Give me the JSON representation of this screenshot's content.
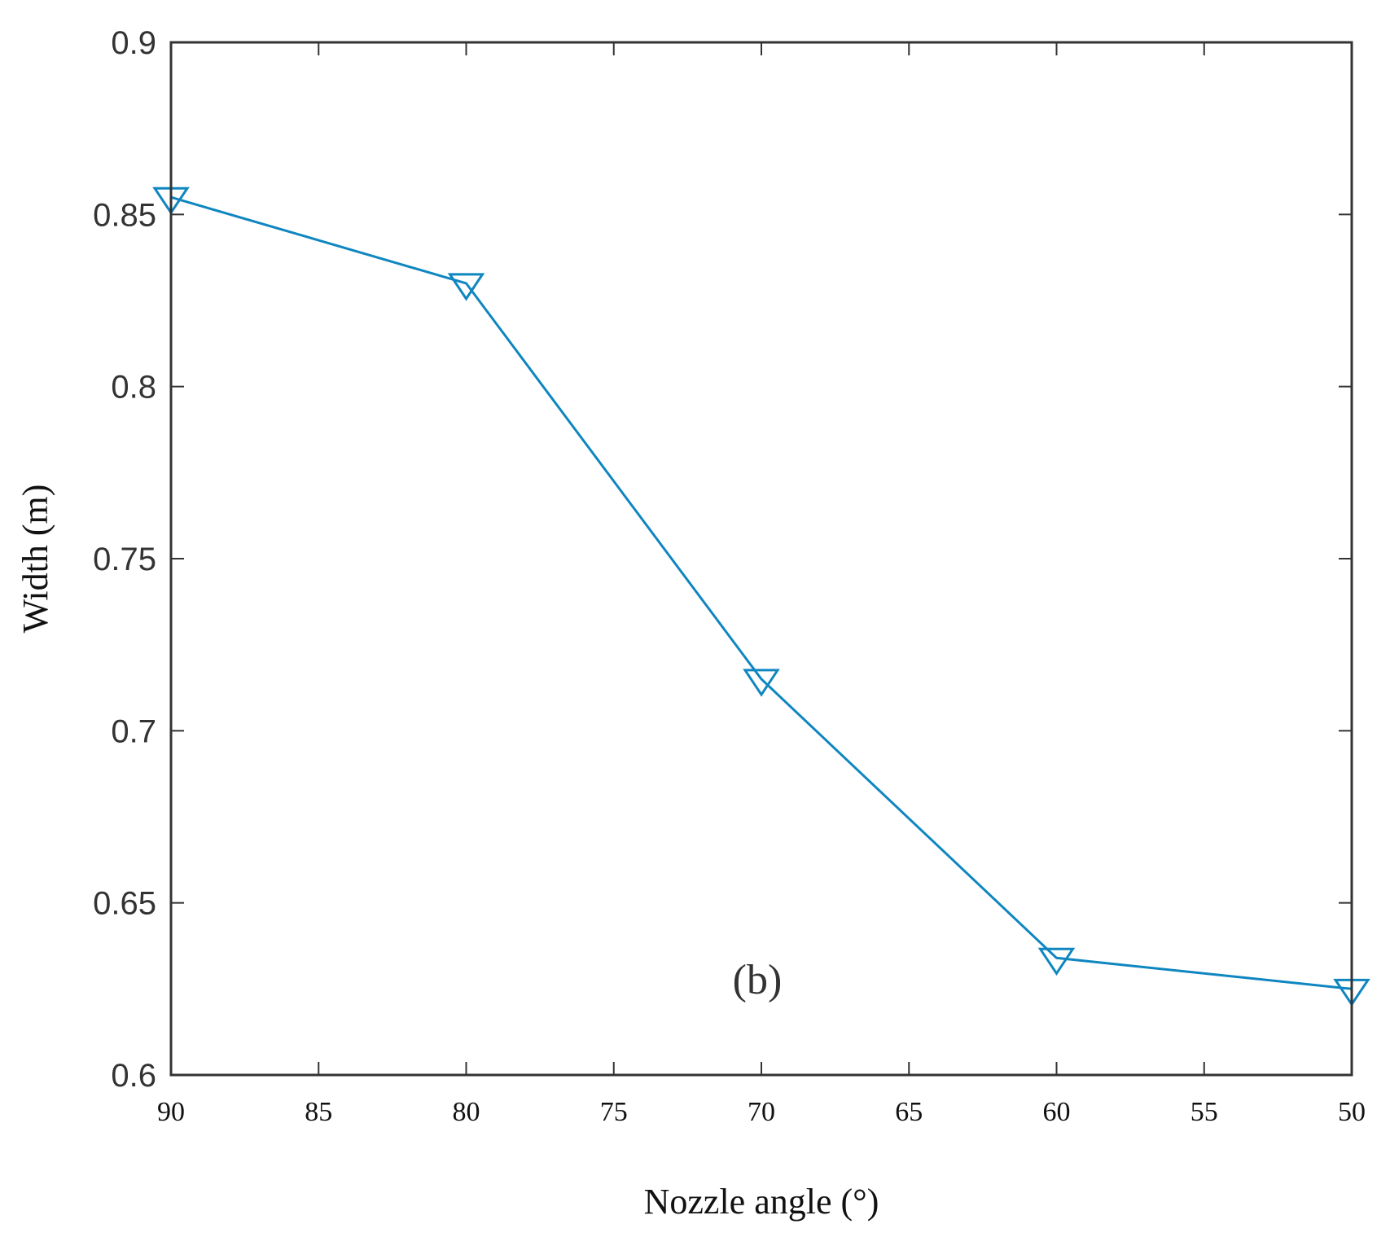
{
  "chart_data": {
    "type": "line",
    "xlabel": "Nozzle angle (°)",
    "ylabel": "Width (m)",
    "xlim": [
      90,
      50
    ],
    "x_reversed": true,
    "ylim": [
      0.6,
      0.9
    ],
    "x_ticks": [
      90,
      85,
      80,
      75,
      70,
      65,
      60,
      55,
      50
    ],
    "x_tick_labels": [
      "90",
      "85",
      "80",
      "75",
      "70",
      "65",
      "60",
      "55",
      "50"
    ],
    "y_ticks": [
      0.6,
      0.65,
      0.7,
      0.75,
      0.8,
      0.85,
      0.9
    ],
    "y_tick_labels": [
      "0.6",
      "0.65",
      "0.7",
      "0.75",
      "0.8",
      "0.85",
      "0.9"
    ],
    "grid": false,
    "annotation": "(b)",
    "series": [
      {
        "marker": "down-triangle",
        "color": "#0f86c0",
        "x": [
          90,
          80,
          70,
          60,
          50
        ],
        "y": [
          0.855,
          0.83,
          0.715,
          0.634,
          0.625
        ]
      }
    ]
  }
}
